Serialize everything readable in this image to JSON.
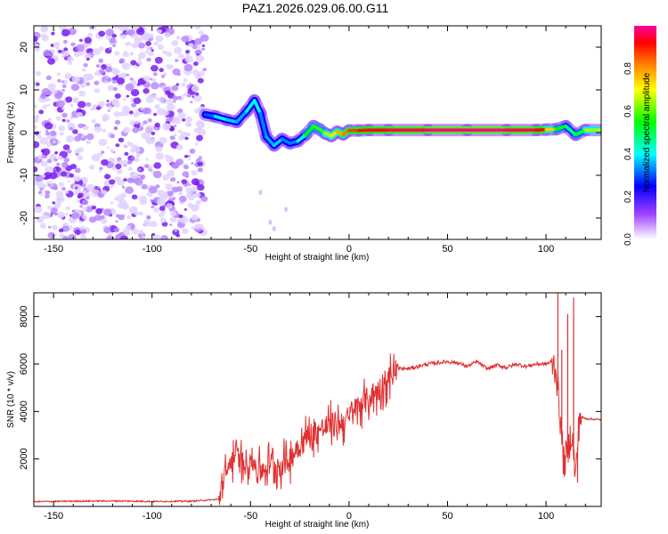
{
  "title": "PAZ1.2026.029.06.00.G11",
  "chart_data": [
    {
      "type": "heatmap",
      "name": "spectrogram",
      "xlabel": "Height of straight line (km)",
      "ylabel": "Frequency (Hz)",
      "xlim": [
        -160,
        128
      ],
      "ylim": [
        -25,
        25
      ],
      "xticks": [
        -150,
        -100,
        -50,
        0,
        50,
        100
      ],
      "yticks": [
        -20,
        -10,
        0,
        10,
        20
      ],
      "noise_region_x": [
        -160,
        -73
      ],
      "ridge": {
        "x": [
          -73,
          -68,
          -62,
          -57,
          -52,
          -48,
          -45,
          -42,
          -38,
          -34,
          -30,
          -26,
          -22,
          -18,
          -15,
          -12,
          -9,
          -6,
          -3,
          0,
          5,
          10,
          20,
          40,
          60,
          80,
          95,
          100,
          105,
          110,
          115,
          120,
          128
        ],
        "y": [
          4.2,
          3.8,
          3.0,
          2.5,
          5.0,
          7.5,
          4.5,
          -1.0,
          -3.0,
          -1.5,
          -2.5,
          -2.0,
          -0.5,
          1.5,
          0.8,
          -0.2,
          -0.8,
          0.2,
          -0.4,
          0.5,
          0.5,
          0.6,
          0.6,
          0.6,
          0.6,
          0.6,
          0.6,
          0.7,
          0.8,
          1.5,
          -0.5,
          0.6,
          0.6
        ],
        "amp": [
          0.25,
          0.35,
          0.45,
          0.3,
          0.4,
          0.45,
          0.35,
          0.3,
          0.4,
          0.35,
          0.3,
          0.35,
          0.5,
          0.6,
          0.55,
          0.6,
          0.7,
          0.75,
          0.8,
          0.85,
          0.9,
          0.92,
          0.95,
          0.97,
          1.0,
          0.98,
          0.95,
          0.9,
          0.6,
          0.5,
          0.45,
          0.6,
          0.7
        ]
      }
    },
    {
      "type": "line",
      "name": "snr",
      "xlabel": "Height of straight line (km)",
      "ylabel": "SNR (10 * v/v)",
      "xlim": [
        -160,
        128
      ],
      "ylim": [
        0,
        9000
      ],
      "xticks": [
        -150,
        -100,
        -50,
        0,
        50,
        100
      ],
      "yticks": [
        2000,
        4000,
        6000,
        8000
      ],
      "color": "#e03030",
      "series": [
        {
          "name": "SNR",
          "x": [
            -160,
            -140,
            -120,
            -100,
            -80,
            -66,
            -62,
            -58,
            -54,
            -50,
            -45,
            -40,
            -35,
            -30,
            -25,
            -20,
            -15,
            -10,
            -5,
            0,
            5,
            10,
            15,
            20,
            25,
            30,
            35,
            40,
            45,
            50,
            55,
            60,
            65,
            70,
            75,
            80,
            85,
            90,
            95,
            100,
            103,
            105,
            107,
            109,
            111,
            113,
            115,
            117,
            120,
            128
          ],
          "y": [
            200,
            220,
            230,
            210,
            220,
            300,
            1500,
            2200,
            1800,
            2000,
            1500,
            1800,
            1700,
            2000,
            2600,
            3000,
            3200,
            3400,
            3500,
            3700,
            4300,
            4500,
            4900,
            5400,
            5800,
            5800,
            5900,
            6000,
            6050,
            6100,
            6050,
            5900,
            6100,
            5800,
            5950,
            5850,
            6000,
            5900,
            6000,
            6000,
            6100,
            5800,
            4000,
            1800,
            2300,
            3200,
            1200,
            3800,
            3700,
            3650
          ]
        }
      ],
      "spikes": [
        {
          "x": 106,
          "y": 9000
        },
        {
          "x": 108,
          "y": 6600
        },
        {
          "x": 111,
          "y": 8100
        },
        {
          "x": 114,
          "y": 8800
        },
        {
          "x": 116,
          "y": 1000
        }
      ]
    }
  ],
  "colorbar": {
    "label": "Normalized spectral amplitude",
    "ticks": [
      "0.0",
      "0.2",
      "0.4",
      "0.6",
      "0.8"
    ],
    "colors": [
      "#ffffff",
      "#9b30ff",
      "#0000ff",
      "#00ffff",
      "#00ff00",
      "#ffff00",
      "#ff8000",
      "#ff0000",
      "#ff00a0"
    ]
  }
}
